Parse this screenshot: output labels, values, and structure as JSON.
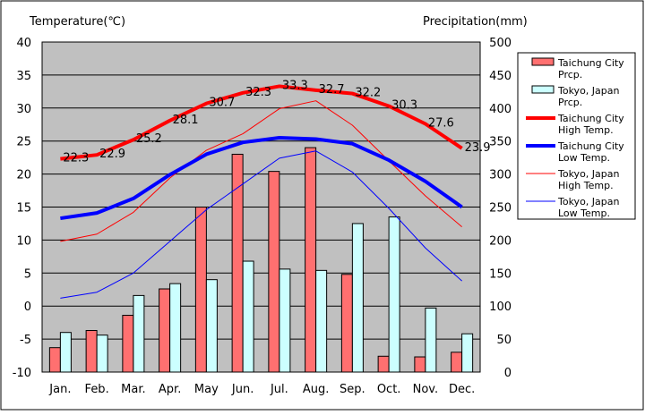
{
  "chart_data": {
    "type": "bar+line",
    "left_axis": {
      "title": "Temperature(℃)",
      "min": -10,
      "max": 40,
      "step": 5
    },
    "right_axis": {
      "title": "Precipitation(mm)",
      "min": 0,
      "max": 500,
      "step": 50
    },
    "categories": [
      "Jan.",
      "Feb.",
      "Mar.",
      "Apr.",
      "May",
      "Jun.",
      "Jul.",
      "Aug.",
      "Sep.",
      "Oct.",
      "Nov.",
      "Dec."
    ],
    "bars": [
      {
        "name": "Taichung City Prcp.",
        "legend": [
          "Taichung City",
          "Prcp."
        ],
        "color": "#ff7070",
        "values": [
          37,
          63,
          86,
          126,
          250,
          330,
          304,
          340,
          148,
          24,
          23,
          30
        ]
      },
      {
        "name": "Tokyo, Japan Prcp.",
        "legend": [
          "Tokyo, Japan",
          "Prcp."
        ],
        "color": "#ccffff",
        "values": [
          60,
          56,
          116,
          134,
          140,
          168,
          156,
          154,
          225,
          235,
          97,
          58
        ]
      }
    ],
    "lines": [
      {
        "name": "Taichung City High Temp.",
        "legend": [
          "Taichung City",
          "High Temp."
        ],
        "color": "#ff0000",
        "width": 4,
        "values": [
          22.3,
          22.9,
          25.2,
          28.1,
          30.7,
          32.3,
          33.3,
          32.7,
          32.2,
          30.3,
          27.6,
          23.9
        ],
        "labels": [
          "22.3",
          "22.9",
          "25.2",
          "28.1",
          "30.7",
          "32.3",
          "33.3",
          "32.7",
          "32.2",
          "30.3",
          "27.6",
          "23.9"
        ]
      },
      {
        "name": "Taichung City Low Temp.",
        "legend": [
          "Taichung City",
          "Low Temp."
        ],
        "color": "#0000ff",
        "width": 4,
        "values": [
          13.3,
          14.1,
          16.3,
          19.9,
          23.0,
          24.8,
          25.5,
          25.3,
          24.6,
          22.1,
          18.9,
          15.0
        ]
      },
      {
        "name": "Tokyo, Japan High Temp.",
        "legend": [
          "Tokyo, Japan",
          "High Temp."
        ],
        "color": "#ff0000",
        "width": 1,
        "values": [
          9.8,
          10.9,
          14.2,
          19.4,
          23.6,
          26.1,
          29.9,
          31.1,
          27.4,
          22.0,
          16.7,
          12.0
        ]
      },
      {
        "name": "Tokyo, Japan Low Temp.",
        "legend": [
          "Tokyo, Japan",
          "Low Temp."
        ],
        "color": "#0000ff",
        "width": 1,
        "values": [
          1.2,
          2.1,
          5.0,
          9.8,
          14.6,
          18.5,
          22.4,
          23.5,
          20.3,
          14.8,
          8.8,
          3.8
        ]
      }
    ]
  }
}
